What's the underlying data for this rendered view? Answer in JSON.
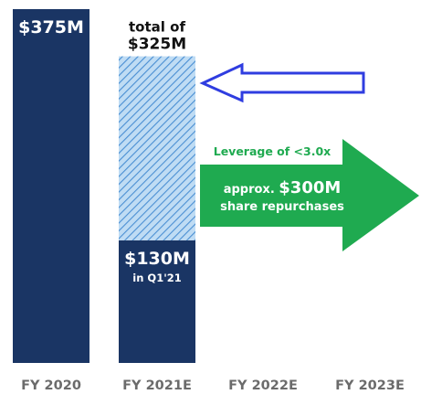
{
  "chart_data": {
    "type": "bar",
    "categories": [
      "FY 2020",
      "FY 2021E",
      "FY 2022E",
      "FY 2023E"
    ],
    "ylim": [
      0,
      375
    ],
    "grid": false,
    "legend": "none",
    "bars": [
      {
        "category": "FY 2020",
        "value": 375,
        "segments": [
          {
            "value": 375,
            "style": "solid",
            "label": "$375M",
            "sublabel": ""
          }
        ]
      },
      {
        "category": "FY 2021E",
        "value": 325,
        "segments": [
          {
            "value": 130,
            "style": "solid",
            "label": "$130M",
            "sublabel": "in Q1'21"
          },
          {
            "value": 195,
            "style": "hatched",
            "label": "",
            "sublabel": ""
          }
        ],
        "total_label_line1": "total of",
        "total_label_line2": "$325M"
      }
    ],
    "annotations": {
      "leverage_text": "Leverage of <3.0x",
      "arrow_line1_prefix": "approx. ",
      "arrow_line1_value": "$300M",
      "arrow_line2": "share repurchases"
    },
    "colors": {
      "navy": "#1a3564",
      "hatch_fill": "#bfdcf4",
      "hatch_stroke": "#4a8fd3",
      "green_arrow": "#1faa50",
      "green_text": "#1faa50",
      "outline_arrow": "#2f3de0",
      "axis_text": "#6b6b6b"
    }
  }
}
